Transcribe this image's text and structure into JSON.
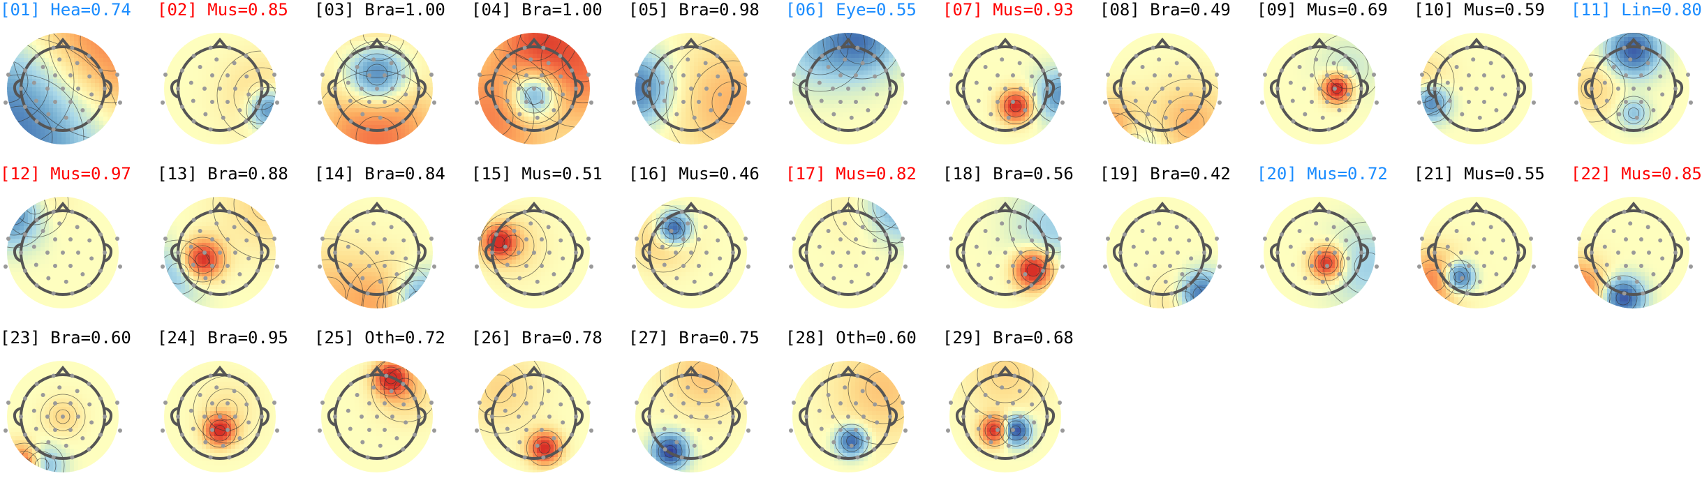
{
  "figure": {
    "colors": {
      "brain": "#000000",
      "artifact_high": "#ff0000",
      "artifact_mid": "#1a8cff"
    },
    "components": [
      {
        "id": "[01]",
        "label": "Hea=0.74",
        "class": "artifact_mid"
      },
      {
        "id": "[02]",
        "label": "Mus=0.85",
        "class": "artifact_high"
      },
      {
        "id": "[03]",
        "label": "Bra=1.00",
        "class": "brain"
      },
      {
        "id": "[04]",
        "label": "Bra=1.00",
        "class": "brain"
      },
      {
        "id": "[05]",
        "label": "Bra=0.98",
        "class": "brain"
      },
      {
        "id": "[06]",
        "label": "Eye=0.55",
        "class": "artifact_mid"
      },
      {
        "id": "[07]",
        "label": "Mus=0.93",
        "class": "artifact_high"
      },
      {
        "id": "[08]",
        "label": "Bra=0.49",
        "class": "brain"
      },
      {
        "id": "[09]",
        "label": "Mus=0.69",
        "class": "brain"
      },
      {
        "id": "[10]",
        "label": "Mus=0.59",
        "class": "brain"
      },
      {
        "id": "[11]",
        "label": "Lin=0.80",
        "class": "artifact_mid"
      },
      {
        "id": "[12]",
        "label": "Mus=0.97",
        "class": "artifact_high"
      },
      {
        "id": "[13]",
        "label": "Bra=0.88",
        "class": "brain"
      },
      {
        "id": "[14]",
        "label": "Bra=0.84",
        "class": "brain"
      },
      {
        "id": "[15]",
        "label": "Mus=0.51",
        "class": "brain"
      },
      {
        "id": "[16]",
        "label": "Mus=0.46",
        "class": "brain"
      },
      {
        "id": "[17]",
        "label": "Mus=0.82",
        "class": "artifact_high"
      },
      {
        "id": "[18]",
        "label": "Bra=0.56",
        "class": "brain"
      },
      {
        "id": "[19]",
        "label": "Bra=0.42",
        "class": "brain"
      },
      {
        "id": "[20]",
        "label": "Mus=0.72",
        "class": "artifact_mid"
      },
      {
        "id": "[21]",
        "label": "Mus=0.55",
        "class": "brain"
      },
      {
        "id": "[22]",
        "label": "Mus=0.85",
        "class": "artifact_high"
      },
      {
        "id": "[23]",
        "label": "Bra=0.60",
        "class": "brain"
      },
      {
        "id": "[24]",
        "label": "Bra=0.95",
        "class": "brain"
      },
      {
        "id": "[25]",
        "label": "Oth=0.72",
        "class": "brain"
      },
      {
        "id": "[26]",
        "label": "Bra=0.78",
        "class": "brain"
      },
      {
        "id": "[27]",
        "label": "Bra=0.75",
        "class": "brain"
      },
      {
        "id": "[28]",
        "label": "Oth=0.60",
        "class": "brain"
      },
      {
        "id": "[29]",
        "label": "Bra=0.68",
        "class": "brain"
      }
    ]
  }
}
